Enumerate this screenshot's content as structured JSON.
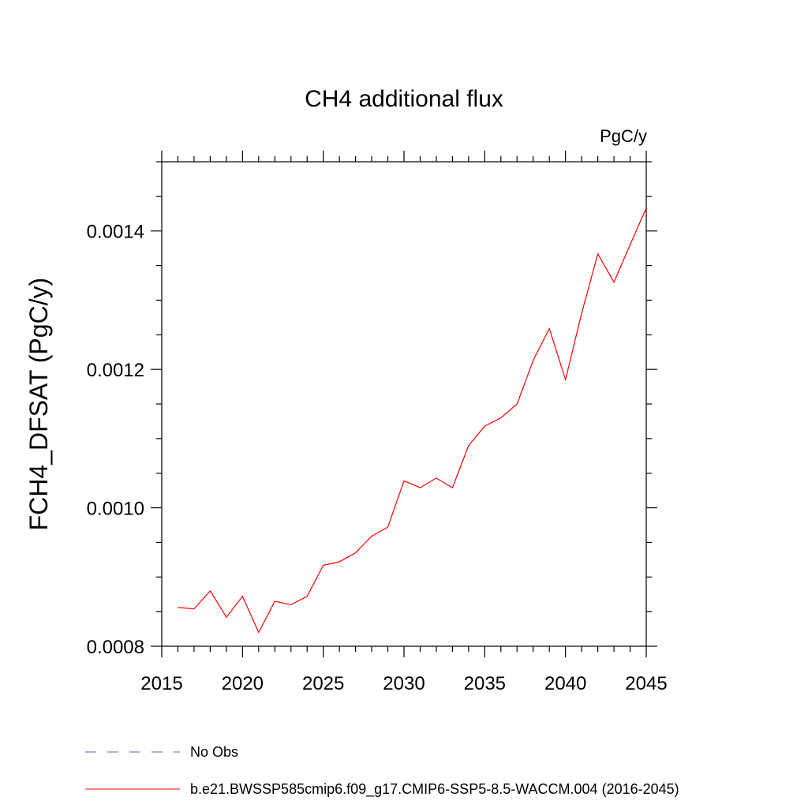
{
  "chart_data": {
    "type": "line",
    "title": "CH4 additional flux",
    "units": "PgC/y",
    "ylabel": "FCH4_DFSAT  (PgC/y)",
    "xlabel": "",
    "xlim": [
      2015,
      2045
    ],
    "ylim": [
      0.0008,
      0.0015
    ],
    "x_ticks": [
      2015,
      2020,
      2025,
      2030,
      2035,
      2040,
      2045
    ],
    "x_tick_labels": [
      "2015",
      "2020",
      "2025",
      "2030",
      "2035",
      "2040",
      "2045"
    ],
    "y_ticks": [
      0.0008,
      0.001,
      0.0012,
      0.0014
    ],
    "y_tick_labels": [
      "0.0008",
      "0.0010",
      "0.0012",
      "0.0014"
    ],
    "y_minor_step": 5e-05,
    "x_minor_step": 1,
    "grid": false,
    "legend_position": "bottom",
    "series": [
      {
        "name": "b.e21.BWSSP585cmip6.f09_g17.CMIP6-SSP5-8.5-WACCM.004 (2016-2045)",
        "color": "#ff0000",
        "x": [
          2016,
          2017,
          2018,
          2019,
          2020,
          2021,
          2022,
          2023,
          2024,
          2025,
          2026,
          2027,
          2028,
          2029,
          2030,
          2031,
          2032,
          2033,
          2034,
          2035,
          2036,
          2037,
          2038,
          2039,
          2040,
          2041,
          2042,
          2043,
          2044,
          2045
        ],
        "y": [
          0.000856,
          0.000854,
          0.00088,
          0.000842,
          0.000872,
          0.00082,
          0.000865,
          0.00086,
          0.000872,
          0.000917,
          0.000922,
          0.000935,
          0.000959,
          0.000972,
          0.001039,
          0.001029,
          0.001043,
          0.001029,
          0.00109,
          0.001118,
          0.00113,
          0.00115,
          0.001213,
          0.001259,
          0.001185,
          0.001281,
          0.001367,
          0.001326,
          0.00138,
          0.001433
        ]
      }
    ],
    "legend": [
      {
        "label": "No Obs",
        "color": "#6a5acd",
        "dash": true
      },
      {
        "label": "b.e21.BWSSP585cmip6.f09_g17.CMIP6-SSP5-8.5-WACCM.004 (2016-2045)",
        "color": "#ff0000",
        "dash": false
      }
    ]
  }
}
